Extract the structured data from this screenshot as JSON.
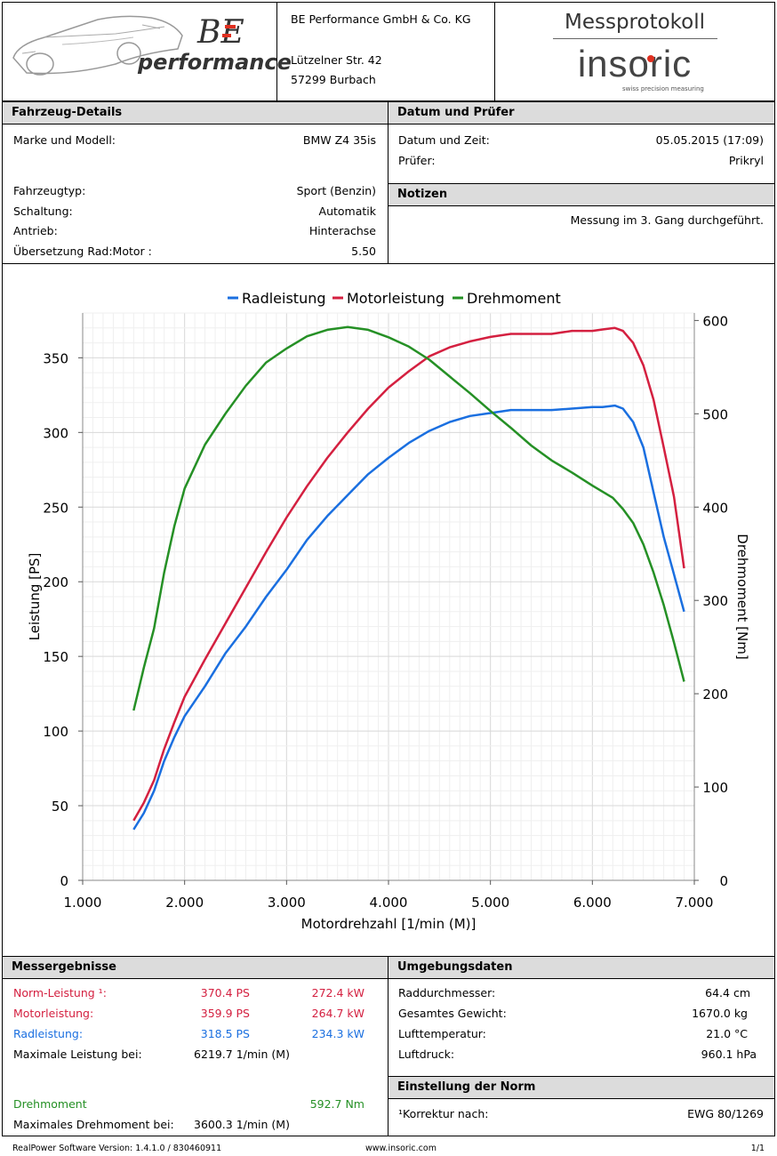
{
  "header": {
    "brand_script": "BE",
    "brand_word": "performance",
    "company_name": "BE Performance GmbH & Co. KG",
    "company_street": "Lützelner Str. 42",
    "company_city": "57299 Burbach",
    "protocol_title": "Messprotokoll",
    "insoric_logo": "insoric",
    "insoric_tagline": "swiss precision measuring"
  },
  "vehicle": {
    "heading": "Fahrzeug-Details",
    "model_label": "Marke und Modell:",
    "model_value": "BMW Z4 35is",
    "type_label": "Fahrzeugtyp:",
    "type_value": "Sport (Benzin)",
    "gearbox_label": "Schaltung:",
    "gearbox_value": "Automatik",
    "drive_label": "Antrieb:",
    "drive_value": "Hinterachse",
    "ratio_label": "Übersetzung Rad:Motor :",
    "ratio_value": "5.50"
  },
  "date_tester": {
    "heading": "Datum und Prüfer",
    "datetime_label": "Datum und Zeit:",
    "datetime_value": "05.05.2015 (17:09)",
    "tester_label": "Prüfer:",
    "tester_value": "Prikryl"
  },
  "notes": {
    "heading": "Notizen",
    "text": "Messung im 3. Gang durchgeführt."
  },
  "chart_data": {
    "type": "line",
    "legend": "top",
    "xlabel": "Motordrehzahl [1/min (M)]",
    "ylabel": "Leistung [PS]",
    "y2label": "Drehmoment [Nm]",
    "xlim": [
      1000,
      7000
    ],
    "ylim": [
      0,
      380
    ],
    "y2lim": [
      0,
      608
    ],
    "xticks": [
      1000,
      2000,
      3000,
      4000,
      5000,
      6000,
      7000
    ],
    "xtick_labels": [
      "1.000",
      "2.000",
      "3.000",
      "4.000",
      "5.000",
      "6.000",
      "7.000"
    ],
    "yticks": [
      0,
      50,
      100,
      150,
      200,
      250,
      300,
      350
    ],
    "y2ticks": [
      0,
      100,
      200,
      300,
      400,
      500,
      600
    ],
    "series": [
      {
        "name": "Radleistung",
        "axis": "left",
        "color": "#1a6fe0",
        "points": [
          [
            1500,
            34
          ],
          [
            1600,
            45
          ],
          [
            1700,
            60
          ],
          [
            1800,
            80
          ],
          [
            1900,
            96
          ],
          [
            2000,
            110
          ],
          [
            2200,
            130
          ],
          [
            2400,
            152
          ],
          [
            2600,
            170
          ],
          [
            2800,
            190
          ],
          [
            3000,
            208
          ],
          [
            3200,
            228
          ],
          [
            3400,
            244
          ],
          [
            3600,
            258
          ],
          [
            3800,
            272
          ],
          [
            4000,
            283
          ],
          [
            4200,
            293
          ],
          [
            4400,
            301
          ],
          [
            4600,
            307
          ],
          [
            4800,
            311
          ],
          [
            5000,
            313
          ],
          [
            5200,
            315
          ],
          [
            5400,
            315
          ],
          [
            5600,
            315
          ],
          [
            5800,
            316
          ],
          [
            6000,
            317
          ],
          [
            6100,
            317
          ],
          [
            6220,
            318
          ],
          [
            6300,
            316
          ],
          [
            6400,
            307
          ],
          [
            6500,
            290
          ],
          [
            6600,
            260
          ],
          [
            6700,
            230
          ],
          [
            6800,
            205
          ],
          [
            6900,
            180
          ]
        ]
      },
      {
        "name": "Motorleistung",
        "axis": "left",
        "color": "#d42040",
        "points": [
          [
            1500,
            40
          ],
          [
            1600,
            52
          ],
          [
            1700,
            67
          ],
          [
            1800,
            88
          ],
          [
            1900,
            106
          ],
          [
            2000,
            123
          ],
          [
            2200,
            148
          ],
          [
            2400,
            172
          ],
          [
            2600,
            196
          ],
          [
            2800,
            220
          ],
          [
            3000,
            243
          ],
          [
            3200,
            264
          ],
          [
            3400,
            283
          ],
          [
            3600,
            300
          ],
          [
            3800,
            316
          ],
          [
            4000,
            330
          ],
          [
            4200,
            341
          ],
          [
            4400,
            351
          ],
          [
            4600,
            357
          ],
          [
            4800,
            361
          ],
          [
            5000,
            364
          ],
          [
            5200,
            366
          ],
          [
            5400,
            366
          ],
          [
            5600,
            366
          ],
          [
            5800,
            368
          ],
          [
            6000,
            368
          ],
          [
            6100,
            369
          ],
          [
            6220,
            370
          ],
          [
            6300,
            368
          ],
          [
            6400,
            360
          ],
          [
            6500,
            345
          ],
          [
            6600,
            322
          ],
          [
            6700,
            290
          ],
          [
            6800,
            257
          ],
          [
            6900,
            209
          ]
        ]
      },
      {
        "name": "Drehmoment",
        "axis": "right",
        "color": "#259025",
        "points": [
          [
            1500,
            182
          ],
          [
            1550,
            205
          ],
          [
            1600,
            228
          ],
          [
            1700,
            270
          ],
          [
            1800,
            330
          ],
          [
            1900,
            380
          ],
          [
            2000,
            420
          ],
          [
            2200,
            467
          ],
          [
            2400,
            500
          ],
          [
            2600,
            530
          ],
          [
            2800,
            555
          ],
          [
            3000,
            570
          ],
          [
            3200,
            583
          ],
          [
            3400,
            590
          ],
          [
            3600,
            593
          ],
          [
            3800,
            590
          ],
          [
            4000,
            582
          ],
          [
            4200,
            572
          ],
          [
            4400,
            558
          ],
          [
            4600,
            540
          ],
          [
            4800,
            522
          ],
          [
            5000,
            503
          ],
          [
            5200,
            485
          ],
          [
            5400,
            466
          ],
          [
            5600,
            450
          ],
          [
            5800,
            437
          ],
          [
            6000,
            423
          ],
          [
            6200,
            410
          ],
          [
            6300,
            398
          ],
          [
            6400,
            383
          ],
          [
            6500,
            360
          ],
          [
            6600,
            330
          ],
          [
            6700,
            295
          ],
          [
            6800,
            255
          ],
          [
            6900,
            213
          ]
        ]
      }
    ]
  },
  "results": {
    "heading": "Messergebnisse",
    "norm_label": "Norm-Leistung ¹:",
    "norm_ps": "370.4 PS",
    "norm_kw": "272.4 kW",
    "motor_label": "Motorleistung:",
    "motor_ps": "359.9 PS",
    "motor_kw": "264.7 kW",
    "wheel_label": "Radleistung:",
    "wheel_ps": "318.5 PS",
    "wheel_kw": "234.3 kW",
    "maxpower_label": "Maximale Leistung bei:",
    "maxpower_value": "6219.7 1/min (M)",
    "torque_label": "Drehmoment",
    "torque_value": "592.7 Nm",
    "maxtorque_label": "Maximales Drehmoment bei:",
    "maxtorque_value": "3600.3 1/min (M)"
  },
  "environment": {
    "heading": "Umgebungsdaten",
    "wheel_diam_label": "Raddurchmesser:",
    "wheel_diam_value": "64.4 cm",
    "weight_label": "Gesamtes Gewicht:",
    "weight_value": "1670.0 kg",
    "air_temp_label": "Lufttemperatur:",
    "air_temp_value": "21.0 °C",
    "air_pressure_label": "Luftdruck:",
    "air_pressure_value": "960.1 hPa"
  },
  "norm": {
    "heading": "Einstellung der Norm",
    "correction_label": "¹Korrektur nach:",
    "correction_value": "EWG 80/1269"
  },
  "footer": {
    "software": "RealPower Software Version: 1.4.1.0 / 830460911",
    "website": "www.insoric.com",
    "page": "1/1"
  },
  "colors": {
    "red": "#d42040",
    "blue": "#1a6fe0",
    "green": "#259025",
    "header_gray": "#dcdcdc"
  }
}
